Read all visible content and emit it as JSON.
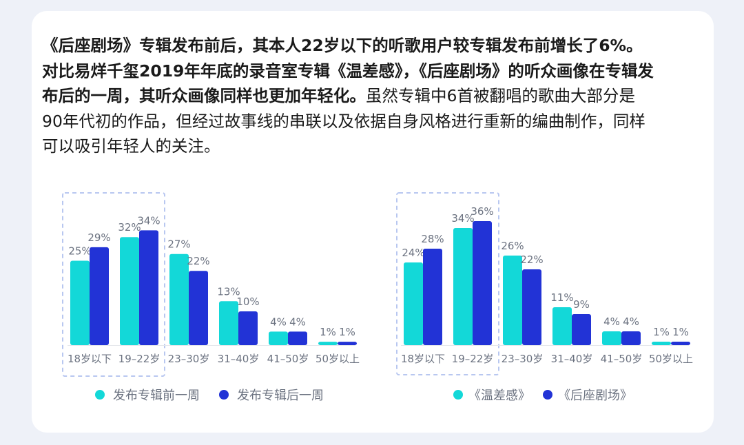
{
  "paragraph": {
    "bold_text": "《后座剧场》专辑发布前后，其本人22岁以下的听歌用户较专辑发布前增长了6%。对比易烊千玺2019年年底的录音室专辑《温差感》，《后座剧场》的听众画像在专辑发布后的一周，其听众画像同样也更加年轻化。",
    "normal_text": "虽然专辑中6首被翻唱的歌曲大部分是90年代初的作品，但经过故事线的串联以及依据自身风格进行重新的编曲制作，同样可以吸引年轻人的关注。"
  },
  "colors": {
    "series_a": "#13d8d8",
    "series_b": "#2233d6",
    "highlight_border": "#b8c7f0",
    "tick_text": "#6b7280"
  },
  "chart_data": [
    {
      "type": "bar",
      "categories": [
        "18岁以下",
        "19–22岁",
        "23–30岁",
        "31–40岁",
        "41–50岁",
        "50岁以上"
      ],
      "series": [
        {
          "name": "发布专辑前一周",
          "values": [
            25,
            32,
            27,
            13,
            4,
            1
          ],
          "labels": [
            "25%",
            "32%",
            "27%",
            "13%",
            "4%",
            "1%"
          ]
        },
        {
          "name": "发布专辑后一周",
          "values": [
            29,
            34,
            22,
            10,
            4,
            1
          ],
          "labels": [
            "29%",
            "34%",
            "22%",
            "10%",
            "4%",
            "1%"
          ]
        }
      ],
      "highlighted_categories": [
        "18岁以下",
        "19–22岁"
      ],
      "legend": "bottom"
    },
    {
      "type": "bar",
      "categories": [
        "18岁以下",
        "19–22岁",
        "23–30岁",
        "31–40岁",
        "41–50岁",
        "50岁以上"
      ],
      "series": [
        {
          "name": "《温差感》",
          "values": [
            24,
            34,
            26,
            11,
            4,
            1
          ],
          "labels": [
            "24%",
            "34%",
            "26%",
            "11%",
            "4%",
            "1%"
          ]
        },
        {
          "name": "《后座剧场》",
          "values": [
            28,
            36,
            22,
            9,
            4,
            1
          ],
          "labels": [
            "28%",
            "36%",
            "22%",
            "9%",
            "4%",
            "1%"
          ]
        }
      ],
      "highlighted_categories": [
        "18岁以下",
        "19–22岁"
      ],
      "legend": "bottom"
    }
  ]
}
